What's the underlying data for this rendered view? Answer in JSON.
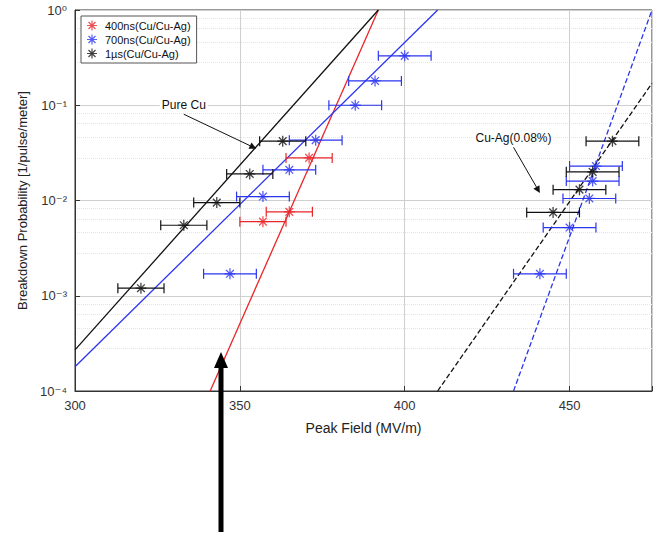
{
  "chart_data": {
    "type": "scatter",
    "xlabel": "Peak Field (MV/m)",
    "ylabel": "Breakdown Probability [1/pulse/meter]",
    "xlim": [
      300,
      475
    ],
    "xticks": [
      300,
      350,
      400,
      450
    ],
    "ylim": [
      0.0001,
      1
    ],
    "yticks": [
      {
        "value": 0.0001,
        "label": "10⁻⁴"
      },
      {
        "value": 0.001,
        "label": "10⁻³"
      },
      {
        "value": 0.01,
        "label": "10⁻²"
      },
      {
        "value": 0.1,
        "label": "10⁻¹"
      },
      {
        "value": 1,
        "label": "10⁰"
      }
    ],
    "log": "y",
    "grid": true,
    "legend": "upper left",
    "series": [
      {
        "name": "400ns(Cu/Cu-Ag)",
        "color": "#e8262a",
        "marker": "asterisk",
        "x": [
          357,
          365,
          371
        ],
        "values": [
          0.006,
          0.0076,
          0.028
        ],
        "x_error": [
          7,
          7,
          7
        ]
      },
      {
        "name": "700ns(Cu/Cu-Ag)",
        "color": "#2a35f0",
        "marker": "asterisk",
        "x": [
          347,
          357,
          365,
          373,
          385,
          391,
          400,
          441,
          450,
          456,
          457,
          458
        ],
        "values": [
          0.0017,
          0.011,
          0.021,
          0.043,
          0.1,
          0.18,
          0.33,
          0.0017,
          0.0052,
          0.0105,
          0.016,
          0.023
        ],
        "x_error": [
          8,
          8,
          8,
          8,
          8,
          8,
          8,
          8,
          8,
          8,
          8,
          8
        ]
      },
      {
        "name": "1µs(Cu/Cu-Ag)",
        "color": "#111111",
        "marker": "asterisk",
        "x": [
          320,
          333,
          343,
          353,
          363,
          445,
          453,
          457,
          463
        ],
        "values": [
          0.0012,
          0.0055,
          0.0095,
          0.019,
          0.042,
          0.0075,
          0.013,
          0.02,
          0.042
        ],
        "x_error": [
          7,
          7,
          7,
          7,
          7,
          8,
          8,
          8,
          8
        ]
      }
    ],
    "fits": [
      {
        "color": "#e8262a",
        "line_style": "solid",
        "x": [
          341,
          392
        ],
        "values": [
          0.0001,
          1
        ]
      },
      {
        "color": "#2a35f0",
        "line_style": "solid",
        "x": [
          300,
          410
        ],
        "values": [
          0.00018,
          1
        ]
      },
      {
        "color": "#111111",
        "line_style": "solid",
        "x": [
          300,
          392
        ],
        "values": [
          0.00027,
          1
        ]
      },
      {
        "color": "#2a35f0",
        "line_style": "dashed",
        "x": [
          433,
          475
        ],
        "values": [
          0.0001,
          1
        ]
      },
      {
        "color": "#111111",
        "line_style": "dashed",
        "x": [
          410,
          475
        ],
        "values": [
          0.0001,
          0.17
        ]
      }
    ],
    "annotations": [
      {
        "text": "Pure Cu",
        "x": 333,
        "y": 0.1,
        "arrow_x": 355,
        "arrow_y": 0.035
      },
      {
        "text": "Cu-Ag(0.08%)",
        "x": 433,
        "y": 0.045,
        "arrow_x": 441,
        "arrow_y": 0.012
      }
    ]
  }
}
